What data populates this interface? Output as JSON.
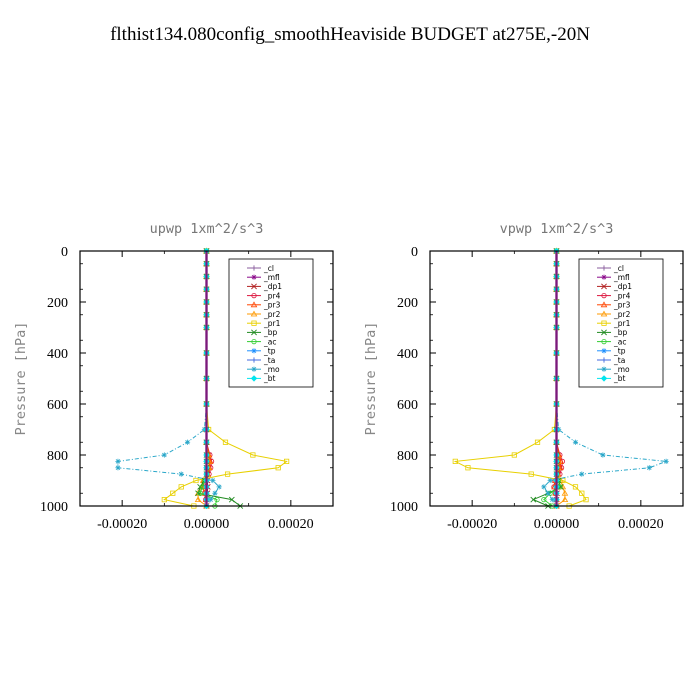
{
  "figure": {
    "title": "flthist134.080config_smoothHeaviside  BUDGET at275E,-20N"
  },
  "chart_data": [
    {
      "type": "line",
      "title": "upwp   1xm^2/s^3",
      "ylabel": "Pressure  [hPa]",
      "xlabel": "",
      "xlim": [
        -0.0003,
        0.0003
      ],
      "ylim": [
        1000,
        0
      ],
      "xticks": [
        "-0.00020",
        "0.00000",
        "0.00020"
      ],
      "yticks": [
        "0",
        "200",
        "400",
        "600",
        "800",
        "1000"
      ],
      "legend_position": "top-right",
      "pressure": [
        0,
        50,
        100,
        150,
        200,
        250,
        300,
        400,
        500,
        600,
        700,
        750,
        800,
        825,
        850,
        875,
        900,
        925,
        950,
        975,
        1000
      ],
      "series": [
        {
          "name": "_cl",
          "color": "#8a5c9e",
          "values": [
            0,
            0,
            0,
            0,
            0,
            0,
            0,
            0,
            0,
            0,
            0,
            0,
            0,
            0,
            0,
            0,
            0,
            0,
            0,
            0,
            0
          ]
        },
        {
          "name": "_mfl",
          "color": "#8b0a8b",
          "values": [
            0,
            0,
            0,
            0,
            0,
            0,
            0,
            0,
            0,
            0,
            0,
            0,
            0,
            0,
            0,
            0,
            0,
            0,
            0,
            0,
            0
          ]
        },
        {
          "name": "_dp1",
          "color": "#b22222",
          "values": [
            0,
            0,
            0,
            0,
            0,
            0,
            0,
            0,
            0,
            0,
            0,
            0,
            5e-06,
            8e-06,
            6e-06,
            4e-06,
            2e-06,
            3e-06,
            2e-06,
            1e-06,
            0
          ]
        },
        {
          "name": "_pr4",
          "color": "#dc143c",
          "values": [
            0,
            0,
            0,
            0,
            0,
            0,
            0,
            0,
            0,
            0,
            0,
            0,
            8e-06,
            1.2e-05,
            1e-05,
            6e-06,
            -4e-06,
            -8e-06,
            -5e-06,
            -2e-06,
            0
          ]
        },
        {
          "name": "_pr3",
          "color": "#ff4500",
          "values": [
            0,
            0,
            0,
            0,
            0,
            0,
            0,
            0,
            0,
            0,
            0,
            0,
            6e-06,
            9e-06,
            7e-06,
            3e-06,
            -6e-06,
            -1e-05,
            -4e-06,
            -1e-06,
            0
          ]
        },
        {
          "name": "_pr2",
          "color": "#ff9900",
          "values": [
            0,
            0,
            0,
            0,
            0,
            0,
            0,
            0,
            0,
            0,
            0,
            0,
            4e-06,
            6e-06,
            5e-06,
            2e-06,
            -8e-06,
            -1.2e-05,
            -2e-05,
            -2e-05,
            0
          ]
        },
        {
          "name": "_pr1",
          "color": "#e8d000",
          "values": [
            0,
            0,
            0,
            0,
            0,
            0,
            0,
            0,
            0,
            0,
            5e-06,
            4.5e-05,
            0.00011,
            0.00019,
            0.00017,
            5e-05,
            -2.5e-05,
            -6e-05,
            -8e-05,
            -0.0001,
            -3e-05
          ]
        },
        {
          "name": "_bp",
          "color": "#228b22",
          "values": [
            0,
            0,
            0,
            0,
            0,
            0,
            0,
            0,
            0,
            0,
            0,
            0,
            0,
            0,
            0,
            0,
            -5e-06,
            -1.5e-05,
            -2e-05,
            6e-05,
            8e-05
          ]
        },
        {
          "name": "_ac",
          "color": "#32cd32",
          "values": [
            0,
            0,
            0,
            0,
            0,
            0,
            0,
            0,
            0,
            0,
            0,
            0,
            0,
            0,
            0,
            0,
            -4e-06,
            -1e-05,
            -1.5e-05,
            2.5e-05,
            2e-05
          ]
        },
        {
          "name": "_tp",
          "color": "#1e90ff",
          "values": [
            0,
            0,
            0,
            0,
            0,
            0,
            0,
            0,
            0,
            0,
            0,
            0,
            0,
            0,
            0,
            0,
            0,
            0,
            0,
            0,
            0
          ]
        },
        {
          "name": "_ta",
          "color": "#4169e1",
          "values": [
            0,
            0,
            0,
            0,
            0,
            0,
            0,
            0,
            0,
            0,
            0,
            0,
            0,
            0,
            0,
            0,
            0,
            0,
            0,
            0,
            0
          ]
        },
        {
          "name": "_mo",
          "color": "#2aa7c9",
          "values": [
            0,
            0,
            0,
            0,
            0,
            0,
            0,
            0,
            0,
            0,
            -5e-06,
            -4.5e-05,
            -0.0001,
            -0.00021,
            -0.00021,
            -6e-05,
            1.5e-05,
            3e-05,
            2e-05,
            1e-05,
            0
          ]
        },
        {
          "name": "_bt",
          "color": "#00e5ee",
          "values": [
            0,
            0,
            0,
            0,
            0,
            0,
            0,
            0,
            0,
            0,
            0,
            0,
            0,
            0,
            0,
            0,
            0,
            0,
            0,
            0,
            0
          ]
        }
      ]
    },
    {
      "type": "line",
      "title": "vpwp   1xm^2/s^3",
      "ylabel": "Pressure  [hPa]",
      "xlabel": "",
      "xlim": [
        -0.0003,
        0.0003
      ],
      "ylim": [
        1000,
        0
      ],
      "xticks": [
        "-0.00020",
        "0.00000",
        "0.00020"
      ],
      "yticks": [
        "0",
        "200",
        "400",
        "600",
        "800",
        "1000"
      ],
      "legend_position": "top-right",
      "pressure": [
        0,
        50,
        100,
        150,
        200,
        250,
        300,
        400,
        500,
        600,
        700,
        750,
        800,
        825,
        850,
        875,
        900,
        925,
        950,
        975,
        1000
      ],
      "series": [
        {
          "name": "_cl",
          "color": "#8a5c9e",
          "values": [
            0,
            0,
            0,
            0,
            0,
            0,
            0,
            0,
            0,
            0,
            0,
            0,
            0,
            0,
            0,
            0,
            0,
            0,
            0,
            0,
            0
          ]
        },
        {
          "name": "_mfl",
          "color": "#8b0a8b",
          "values": [
            0,
            0,
            0,
            0,
            0,
            0,
            0,
            0,
            0,
            0,
            0,
            0,
            0,
            0,
            0,
            0,
            0,
            0,
            0,
            0,
            0
          ]
        },
        {
          "name": "_dp1",
          "color": "#b22222",
          "values": [
            0,
            0,
            0,
            0,
            0,
            0,
            0,
            0,
            0,
            0,
            0,
            0,
            4e-06,
            7e-06,
            8e-06,
            5e-06,
            2e-06,
            1e-06,
            1e-06,
            0,
            0
          ]
        },
        {
          "name": "_pr4",
          "color": "#dc143c",
          "values": [
            0,
            0,
            0,
            0,
            0,
            0,
            0,
            0,
            0,
            0,
            0,
            0,
            8e-06,
            1.4e-05,
            1.2e-05,
            8e-06,
            -4e-06,
            -6e-06,
            -2e-06,
            0,
            0
          ]
        },
        {
          "name": "_pr3",
          "color": "#ff4500",
          "values": [
            0,
            0,
            0,
            0,
            0,
            0,
            0,
            0,
            0,
            0,
            0,
            0,
            6e-06,
            1e-05,
            9e-06,
            4e-06,
            -3e-06,
            -5e-06,
            -2e-06,
            0,
            0
          ]
        },
        {
          "name": "_pr2",
          "color": "#ff9900",
          "values": [
            0,
            0,
            0,
            0,
            0,
            0,
            0,
            0,
            0,
            0,
            0,
            0,
            3e-06,
            5e-06,
            4e-06,
            2e-06,
            1e-05,
            1.5e-05,
            2e-05,
            2e-05,
            0
          ]
        },
        {
          "name": "_pr1",
          "color": "#e8d000",
          "values": [
            0,
            0,
            0,
            0,
            0,
            0,
            0,
            0,
            0,
            0,
            -5e-06,
            -4.5e-05,
            -0.0001,
            -0.00024,
            -0.00021,
            -6e-05,
            1.5e-05,
            4.5e-05,
            6e-05,
            7e-05,
            3e-05
          ]
        },
        {
          "name": "_bp",
          "color": "#228b22",
          "values": [
            0,
            0,
            0,
            0,
            0,
            0,
            0,
            0,
            0,
            0,
            0,
            0,
            0,
            0,
            0,
            0,
            5e-06,
            1e-05,
            -2e-05,
            -5.5e-05,
            -2e-05
          ]
        },
        {
          "name": "_ac",
          "color": "#32cd32",
          "values": [
            0,
            0,
            0,
            0,
            0,
            0,
            0,
            0,
            0,
            0,
            0,
            0,
            0,
            0,
            0,
            0,
            4e-06,
            8e-06,
            -1.5e-05,
            -3e-05,
            -1e-05
          ]
        },
        {
          "name": "_tp",
          "color": "#1e90ff",
          "values": [
            0,
            0,
            0,
            0,
            0,
            0,
            0,
            0,
            0,
            0,
            0,
            0,
            0,
            0,
            0,
            0,
            0,
            0,
            0,
            0,
            0
          ]
        },
        {
          "name": "_ta",
          "color": "#4169e1",
          "values": [
            0,
            0,
            0,
            0,
            0,
            0,
            0,
            0,
            0,
            0,
            0,
            0,
            0,
            0,
            0,
            0,
            0,
            0,
            0,
            0,
            0
          ]
        },
        {
          "name": "_mo",
          "color": "#2aa7c9",
          "values": [
            0,
            0,
            0,
            0,
            0,
            0,
            0,
            0,
            0,
            0,
            5e-06,
            4.5e-05,
            0.00011,
            0.00026,
            0.00022,
            6e-05,
            -1.5e-05,
            -3e-05,
            -2e-05,
            -1e-05,
            0
          ]
        },
        {
          "name": "_bt",
          "color": "#00e5ee",
          "values": [
            0,
            0,
            0,
            0,
            0,
            0,
            0,
            0,
            0,
            0,
            0,
            0,
            0,
            0,
            0,
            0,
            0,
            0,
            0,
            0,
            0
          ]
        }
      ]
    }
  ]
}
